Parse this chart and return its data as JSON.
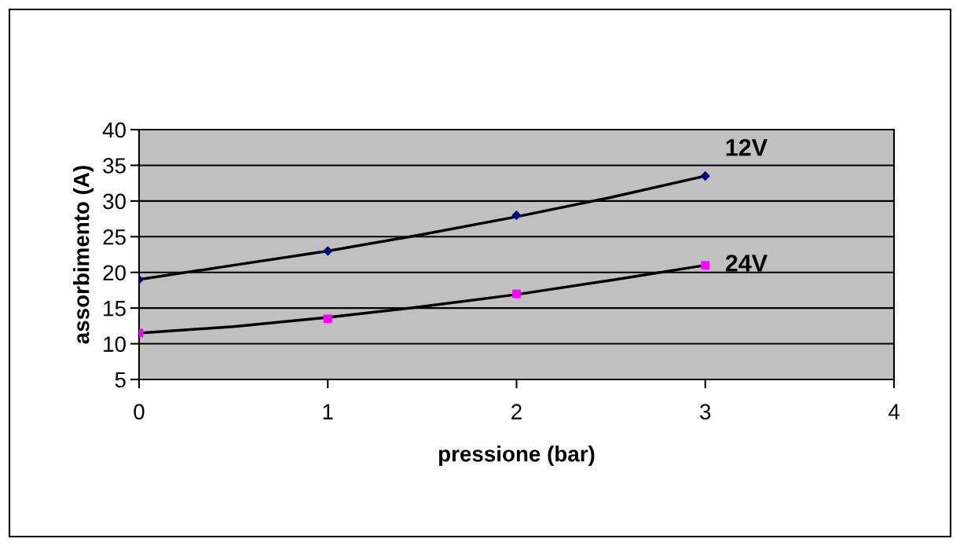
{
  "chart_data": {
    "type": "scatter",
    "xlabel": "pressione (bar)",
    "ylabel": "assorbimento (A)",
    "x": [
      0,
      1,
      2,
      3
    ],
    "series": [
      {
        "name": "12V",
        "color": "#000080",
        "marker": "diamond",
        "values": [
          19,
          23,
          28,
          33.5
        ]
      },
      {
        "name": "24V",
        "color": "#ff00ff",
        "marker": "square",
        "values": [
          11.5,
          13.5,
          17,
          21
        ]
      },
      {
        "type": "line",
        "color": "#000000",
        "marker": "none",
        "x": [
          0,
          0.5,
          1,
          1.5,
          2,
          2.5,
          3
        ],
        "values": [
          19,
          21,
          23,
          25.3,
          27.8,
          30.5,
          33.5
        ]
      },
      {
        "type": "line",
        "color": "#000000",
        "marker": "none",
        "x": [
          0,
          0.5,
          1,
          1.5,
          2,
          2.5,
          3
        ],
        "values": [
          11.5,
          12.4,
          13.7,
          15.2,
          16.9,
          18.9,
          21
        ]
      }
    ],
    "xlim": [
      0,
      4
    ],
    "xticks": [
      0,
      1,
      2,
      3,
      4
    ],
    "ylim": [
      5,
      40
    ],
    "yticks": [
      5,
      10,
      15,
      20,
      25,
      30,
      35,
      40
    ],
    "grid": "y",
    "legend": false
  }
}
